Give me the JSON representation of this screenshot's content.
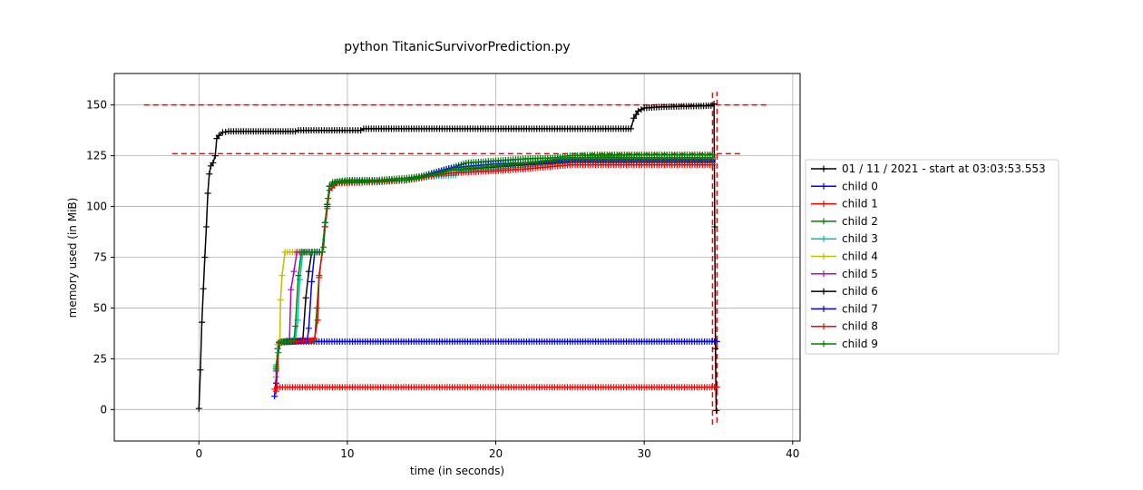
{
  "chart_data": {
    "type": "line",
    "title": "python TitanicSurvivorPrediction.py",
    "xlabel": "time (in seconds)",
    "ylabel": "memory used (in MiB)",
    "xlim": [
      -5.7,
      40.5
    ],
    "ylim": [
      -15.5,
      165.5
    ],
    "xticks": [
      0,
      10,
      20,
      30,
      40
    ],
    "yticks": [
      0,
      25,
      50,
      75,
      100,
      125,
      150
    ],
    "grid": true,
    "legend_position": "center-right, outside plot",
    "reference_lines": [
      {
        "orientation": "horizontal",
        "y": 150,
        "x_from": -3.7,
        "x_to": 38.4,
        "color": "#ff0000"
      },
      {
        "orientation": "horizontal",
        "y": 126,
        "x_from": -1.8,
        "x_to": 36.6,
        "color": "#ff0000"
      },
      {
        "orientation": "vertical",
        "x": 34.6,
        "y_from": -7.5,
        "y_to": 157.5,
        "color": "#ff0000"
      },
      {
        "orientation": "vertical",
        "x": 34.9,
        "y_from": -6.5,
        "y_to": 156.5,
        "color": "#ff0000"
      }
    ],
    "series": [
      {
        "name": "01 / 11 / 2021 - start at 03:03:53.553",
        "color": "#000000",
        "points": [
          [
            0,
            0.5
          ],
          [
            0.1,
            19.5
          ],
          [
            0.2,
            43
          ],
          [
            0.3,
            59.5
          ],
          [
            0.4,
            75
          ],
          [
            0.5,
            90
          ],
          [
            0.6,
            106.5
          ],
          [
            0.7,
            116
          ],
          [
            0.8,
            120
          ],
          [
            0.95,
            121.5
          ],
          [
            1.1,
            125
          ],
          [
            1.2,
            133.5
          ],
          [
            1.35,
            135
          ],
          [
            1.6,
            136.5
          ],
          [
            2,
            137
          ],
          [
            3,
            137
          ],
          [
            5,
            137
          ],
          [
            6.5,
            137
          ],
          [
            6.7,
            137.5
          ],
          [
            10,
            137.5
          ],
          [
            10.9,
            137.5
          ],
          [
            11.1,
            138.3
          ],
          [
            15,
            138.3
          ],
          [
            20,
            138.3
          ],
          [
            25,
            138.3
          ],
          [
            28.6,
            138.3
          ],
          [
            29.1,
            138.3
          ],
          [
            29.3,
            143.5
          ],
          [
            29.6,
            147
          ],
          [
            30,
            148.5
          ],
          [
            31,
            149
          ],
          [
            32,
            149.2
          ],
          [
            33,
            149.4
          ],
          [
            34,
            149.5
          ],
          [
            34.5,
            149.7
          ],
          [
            34.7,
            150.5
          ],
          [
            34.75,
            90
          ],
          [
            34.8,
            30
          ],
          [
            34.85,
            -0.5
          ]
        ]
      },
      {
        "name": "child 0",
        "color": "#0000ff",
        "points": [
          [
            5.1,
            6.5
          ],
          [
            5.2,
            16
          ],
          [
            5.3,
            30
          ],
          [
            5.5,
            33.5
          ],
          [
            10,
            33.5
          ],
          [
            15,
            33.5
          ],
          [
            20,
            33.5
          ],
          [
            25,
            33.5
          ],
          [
            30,
            33.5
          ],
          [
            34.9,
            33.5
          ]
        ]
      },
      {
        "name": "child 1",
        "color": "#ff0000",
        "points": [
          [
            5.1,
            10
          ],
          [
            5.3,
            11
          ],
          [
            10,
            11
          ],
          [
            15,
            11
          ],
          [
            20,
            11
          ],
          [
            25,
            11
          ],
          [
            30,
            11
          ],
          [
            34.9,
            11
          ]
        ]
      },
      {
        "name": "child 2",
        "color": "#008000",
        "points": [
          [
            5.2,
            21
          ],
          [
            5.35,
            28
          ],
          [
            5.5,
            33.5
          ],
          [
            7,
            34
          ],
          [
            7.8,
            34
          ],
          [
            8.1,
            66
          ],
          [
            8.3,
            77.5
          ],
          [
            8.4,
            80
          ],
          [
            8.5,
            90
          ],
          [
            8.7,
            104
          ],
          [
            8.8,
            110
          ],
          [
            9,
            112
          ],
          [
            10,
            113
          ],
          [
            12,
            113
          ],
          [
            14,
            114
          ],
          [
            15,
            115
          ],
          [
            16,
            117
          ],
          [
            17,
            119
          ],
          [
            18,
            121.5
          ],
          [
            20,
            122.5
          ],
          [
            22,
            123.5
          ],
          [
            24,
            124
          ],
          [
            25,
            125
          ],
          [
            27,
            125.5
          ],
          [
            30,
            125.5
          ],
          [
            34.6,
            125.5
          ]
        ]
      },
      {
        "name": "child 3",
        "color": "#00bfbf",
        "points": [
          [
            5.2,
            22
          ],
          [
            5.4,
            33
          ],
          [
            6.5,
            34
          ],
          [
            6.65,
            44
          ],
          [
            6.8,
            64
          ],
          [
            7,
            77.5
          ],
          [
            8.3,
            77.5
          ],
          [
            8.5,
            92
          ],
          [
            8.8,
            110
          ],
          [
            9.3,
            112
          ],
          [
            12,
            112.5
          ],
          [
            14,
            113
          ],
          [
            15,
            114.5
          ],
          [
            16,
            115
          ],
          [
            17.3,
            115.5
          ],
          [
            17.5,
            117.5
          ],
          [
            20,
            118.5
          ],
          [
            22,
            119.5
          ],
          [
            25,
            121.5
          ],
          [
            30,
            121.5
          ],
          [
            34.6,
            121.5
          ]
        ]
      },
      {
        "name": "child 4",
        "color": "#bfbf00",
        "points": [
          [
            5.2,
            16
          ],
          [
            5.3,
            32
          ],
          [
            5.45,
            34
          ],
          [
            5.5,
            54
          ],
          [
            5.6,
            66
          ],
          [
            5.8,
            77.5
          ],
          [
            8.3,
            77.5
          ],
          [
            8.5,
            92
          ],
          [
            8.8,
            110
          ],
          [
            9.3,
            112
          ],
          [
            12,
            112.5
          ],
          [
            14,
            113
          ],
          [
            15,
            114.5
          ],
          [
            16,
            116
          ],
          [
            17,
            118.5
          ],
          [
            20,
            120
          ],
          [
            22,
            121.5
          ],
          [
            25,
            123.5
          ],
          [
            30,
            123.5
          ],
          [
            34.6,
            123.5
          ]
        ]
      },
      {
        "name": "child 5",
        "color": "#bf00bf",
        "points": [
          [
            5.2,
            19
          ],
          [
            5.4,
            33
          ],
          [
            6.1,
            34
          ],
          [
            6.2,
            59
          ],
          [
            6.4,
            68
          ],
          [
            6.6,
            77.5
          ],
          [
            8.3,
            77.5
          ],
          [
            8.5,
            92
          ],
          [
            8.8,
            110
          ],
          [
            9.3,
            112
          ],
          [
            12,
            112.5
          ],
          [
            14,
            113
          ],
          [
            15,
            114.5
          ],
          [
            16,
            116
          ],
          [
            17,
            118
          ],
          [
            20,
            119.5
          ],
          [
            22,
            121
          ],
          [
            25,
            123
          ],
          [
            30,
            123
          ],
          [
            34.6,
            123
          ]
        ]
      },
      {
        "name": "child 6",
        "color": "#000000",
        "points": [
          [
            5.2,
            20
          ],
          [
            5.4,
            33
          ],
          [
            7,
            34
          ],
          [
            7.2,
            55
          ],
          [
            7.4,
            68
          ],
          [
            7.6,
            77.5
          ],
          [
            8.3,
            77.5
          ],
          [
            8.5,
            92
          ],
          [
            8.8,
            110
          ],
          [
            9.3,
            112
          ],
          [
            12,
            112.5
          ],
          [
            14,
            113
          ],
          [
            15,
            114.5
          ],
          [
            16,
            116
          ],
          [
            17,
            118
          ],
          [
            20,
            119.5
          ],
          [
            22,
            120.5
          ],
          [
            25,
            122
          ],
          [
            30,
            122
          ],
          [
            34.6,
            122
          ]
        ]
      },
      {
        "name": "child 7",
        "color": "#0000ff",
        "points": [
          [
            5.2,
            13
          ],
          [
            5.4,
            33
          ],
          [
            7.3,
            34
          ],
          [
            7.4,
            40
          ],
          [
            7.6,
            63
          ],
          [
            7.8,
            77.5
          ],
          [
            8.3,
            77.5
          ],
          [
            8.5,
            90
          ],
          [
            8.8,
            110
          ],
          [
            9.3,
            112
          ],
          [
            12,
            112.5
          ],
          [
            14,
            113
          ],
          [
            15,
            114.5
          ],
          [
            16,
            117
          ],
          [
            17,
            119
          ],
          [
            20,
            121
          ],
          [
            22,
            121.5
          ],
          [
            25,
            123
          ],
          [
            30,
            123
          ],
          [
            34.6,
            123
          ]
        ]
      },
      {
        "name": "child 8",
        "color": "#ff0000",
        "points": [
          [
            5.2,
            9
          ],
          [
            5.4,
            33
          ],
          [
            7.7,
            34
          ],
          [
            7.8,
            35
          ],
          [
            8,
            44
          ],
          [
            8.1,
            65
          ],
          [
            8.3,
            77.5
          ],
          [
            8.5,
            90
          ],
          [
            8.8,
            108
          ],
          [
            9.3,
            111.5
          ],
          [
            12,
            112
          ],
          [
            14,
            113
          ],
          [
            15,
            114
          ],
          [
            16,
            115.5
          ],
          [
            17,
            116.5
          ],
          [
            20,
            117.5
          ],
          [
            22,
            118.5
          ],
          [
            25,
            120.5
          ],
          [
            30,
            120.5
          ],
          [
            34.6,
            120.5
          ]
        ]
      },
      {
        "name": "child 9",
        "color": "#008000",
        "points": [
          [
            5.2,
            20
          ],
          [
            5.4,
            33
          ],
          [
            6.4,
            34
          ],
          [
            6.5,
            41
          ],
          [
            6.7,
            66
          ],
          [
            6.9,
            77.5
          ],
          [
            8.3,
            77.5
          ],
          [
            8.5,
            92
          ],
          [
            8.8,
            110
          ],
          [
            9.3,
            112
          ],
          [
            12,
            112.5
          ],
          [
            14,
            113
          ],
          [
            15,
            114.5
          ],
          [
            16,
            116
          ],
          [
            17,
            118
          ],
          [
            20,
            120
          ],
          [
            22,
            121.5
          ],
          [
            25,
            124
          ],
          [
            30,
            124
          ],
          [
            34.6,
            124
          ]
        ]
      }
    ]
  }
}
